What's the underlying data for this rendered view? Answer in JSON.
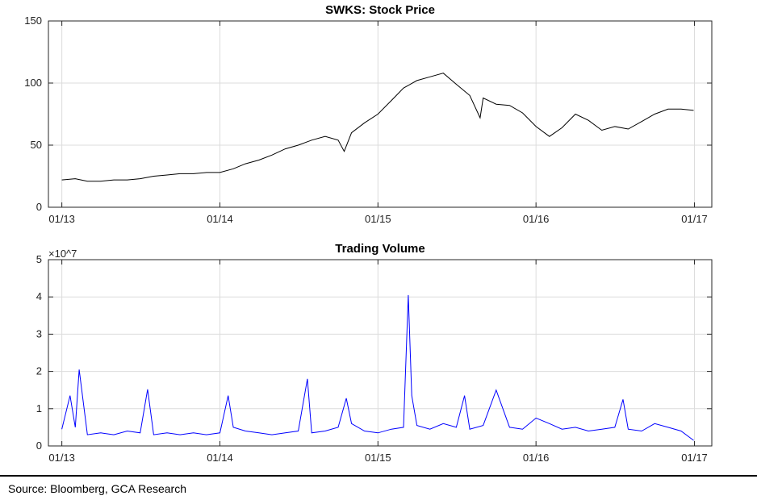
{
  "chart_data": [
    {
      "type": "line",
      "title": "SWKS: Stock Price",
      "xlabel": "",
      "ylabel": "",
      "ylim": [
        0,
        150
      ],
      "yticks": [
        "0",
        "50",
        "100",
        "150"
      ],
      "xticks": [
        "01/13",
        "01/14",
        "01/15",
        "01/16",
        "01/17"
      ],
      "grid": true,
      "color": "#000000",
      "series": [
        {
          "x": [
            "2013-01-01",
            "2013-02-01",
            "2013-03-01",
            "2013-04-01",
            "2013-05-01",
            "2013-06-01",
            "2013-07-01",
            "2013-08-01",
            "2013-09-01",
            "2013-10-01",
            "2013-11-01",
            "2013-12-01",
            "2014-01-01",
            "2014-02-01",
            "2014-03-01",
            "2014-04-01",
            "2014-05-01",
            "2014-06-01",
            "2014-07-01",
            "2014-08-01",
            "2014-09-01",
            "2014-10-01",
            "2014-10-15",
            "2014-11-01",
            "2014-12-01",
            "2015-01-01",
            "2015-02-01",
            "2015-03-01",
            "2015-04-01",
            "2015-05-01",
            "2015-06-01",
            "2015-07-01",
            "2015-08-01",
            "2015-08-25",
            "2015-09-01",
            "2015-10-01",
            "2015-11-01",
            "2015-12-01",
            "2016-01-01",
            "2016-02-01",
            "2016-03-01",
            "2016-04-01",
            "2016-05-01",
            "2016-06-01",
            "2016-07-01",
            "2016-08-01",
            "2016-09-01",
            "2016-10-01",
            "2016-11-01",
            "2016-12-01",
            "2016-12-30"
          ],
          "y": [
            22,
            23,
            21,
            21,
            22,
            22,
            23,
            25,
            26,
            27,
            27,
            28,
            28,
            31,
            35,
            38,
            42,
            47,
            50,
            54,
            57,
            54,
            45,
            60,
            68,
            75,
            86,
            96,
            102,
            105,
            108,
            99,
            90,
            72,
            88,
            83,
            82,
            76,
            65,
            57,
            64,
            75,
            70,
            62,
            65,
            63,
            69,
            75,
            79,
            79,
            78
          ]
        }
      ]
    },
    {
      "type": "line",
      "title": "Trading Volume",
      "xlabel": "",
      "ylabel": "",
      "y_multiplier": "×10^7",
      "ylim": [
        0,
        5
      ],
      "yticks": [
        "0",
        "1",
        "2",
        "3",
        "4",
        "5"
      ],
      "xticks": [
        "01/13",
        "01/14",
        "01/15",
        "01/16",
        "01/17"
      ],
      "grid": true,
      "color": "#0000ff",
      "series": [
        {
          "x": [
            "2013-01-01",
            "2013-01-20",
            "2013-02-01",
            "2013-02-10",
            "2013-03-01",
            "2013-04-01",
            "2013-05-01",
            "2013-06-01",
            "2013-07-01",
            "2013-07-18",
            "2013-08-01",
            "2013-09-01",
            "2013-10-01",
            "2013-11-01",
            "2013-12-01",
            "2014-01-01",
            "2014-01-20",
            "2014-02-01",
            "2014-03-01",
            "2014-04-01",
            "2014-05-01",
            "2014-06-01",
            "2014-07-01",
            "2014-07-22",
            "2014-08-01",
            "2014-09-01",
            "2014-10-01",
            "2014-10-20",
            "2014-11-01",
            "2014-12-01",
            "2015-01-01",
            "2015-02-01",
            "2015-03-01",
            "2015-03-12",
            "2015-03-20",
            "2015-04-01",
            "2015-05-01",
            "2015-06-01",
            "2015-07-01",
            "2015-07-20",
            "2015-08-01",
            "2015-09-01",
            "2015-10-01",
            "2015-11-01",
            "2015-12-01",
            "2016-01-01",
            "2016-02-01",
            "2016-03-01",
            "2016-04-01",
            "2016-05-01",
            "2016-06-01",
            "2016-07-01",
            "2016-07-20",
            "2016-08-01",
            "2016-09-01",
            "2016-10-01",
            "2016-11-01",
            "2016-12-01",
            "2016-12-30"
          ],
          "y": [
            0.45,
            1.35,
            0.5,
            2.05,
            0.3,
            0.35,
            0.3,
            0.4,
            0.35,
            1.52,
            0.3,
            0.35,
            0.3,
            0.35,
            0.3,
            0.35,
            1.35,
            0.5,
            0.4,
            0.35,
            0.3,
            0.35,
            0.4,
            1.8,
            0.35,
            0.4,
            0.5,
            1.28,
            0.6,
            0.4,
            0.35,
            0.45,
            0.5,
            4.05,
            1.35,
            0.55,
            0.45,
            0.6,
            0.5,
            1.35,
            0.45,
            0.55,
            1.5,
            0.5,
            0.45,
            0.75,
            0.6,
            0.45,
            0.5,
            0.4,
            0.45,
            0.5,
            1.25,
            0.45,
            0.4,
            0.6,
            0.5,
            0.4,
            0.15
          ]
        }
      ]
    }
  ],
  "footer": {
    "source": "Source: Bloomberg, GCA Research"
  }
}
